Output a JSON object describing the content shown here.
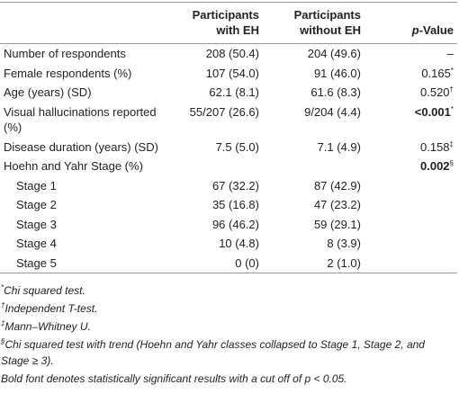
{
  "table": {
    "header": {
      "col1": "Participants with EH",
      "col2": "Participants without EH",
      "col3": {
        "italic": "p",
        "rest": "-Value"
      }
    },
    "rows": [
      {
        "label": "Number of respondents",
        "col1": "208 (50.4)",
        "col2": "204 (49.6)",
        "col3": {
          "text": "–"
        }
      },
      {
        "label": "Female respondents (%)",
        "col1": "107 (54.0)",
        "col2": "91 (46.0)",
        "col3": {
          "text": "0.165",
          "note": "*"
        }
      },
      {
        "label": "Age (years) (SD)",
        "col1": "62.1 (8.1)",
        "col2": "61.6 (8.3)",
        "col3": {
          "text": "0.520",
          "note": "†"
        }
      },
      {
        "label": "Visual hallucinations reported (%)",
        "col1": "55/207 (26.6)",
        "col2": "9/204 (4.4)",
        "col3": {
          "text": "<0.001",
          "note": "*",
          "bold": true
        }
      },
      {
        "label": "Disease duration (years) (SD)",
        "col1": "7.5 (5.0)",
        "col2": "7.1 (4.9)",
        "col3": {
          "text": "0.158",
          "note": "‡"
        }
      },
      {
        "label": "Hoehn and Yahr Stage (%)",
        "col3": {
          "text": "0.002",
          "note": "§",
          "bold": true
        }
      },
      {
        "label": "Stage 1",
        "indent": true,
        "col1": "67 (32.2)",
        "col2": "87 (42.9)"
      },
      {
        "label": "Stage 2",
        "indent": true,
        "col1": "35 (16.8)",
        "col2": "47 (23.2)"
      },
      {
        "label": "Stage 3",
        "indent": true,
        "col1": "96 (46.2)",
        "col2": "59 (29.1)"
      },
      {
        "label": "Stage 4",
        "indent": true,
        "col1": "10 (4.8)",
        "col2": "8 (3.9)"
      },
      {
        "label": "Stage 5",
        "indent": true,
        "col1": "0 (0)",
        "col2": "2 (1.0)"
      }
    ]
  },
  "footnotes": [
    {
      "mark": "*",
      "text": "Chi squared test."
    },
    {
      "mark": "†",
      "text": "Independent T-test."
    },
    {
      "mark": "‡",
      "text": "Mann–Whitney U."
    },
    {
      "mark": "§",
      "text": "Chi squared test with trend (Hoehn and Yahr classes collapsed to Stage 1, Stage 2, and Stage ≥ 3)."
    },
    {
      "text": "Bold font denotes statistically significant results with a cut off of p < 0.05."
    }
  ]
}
